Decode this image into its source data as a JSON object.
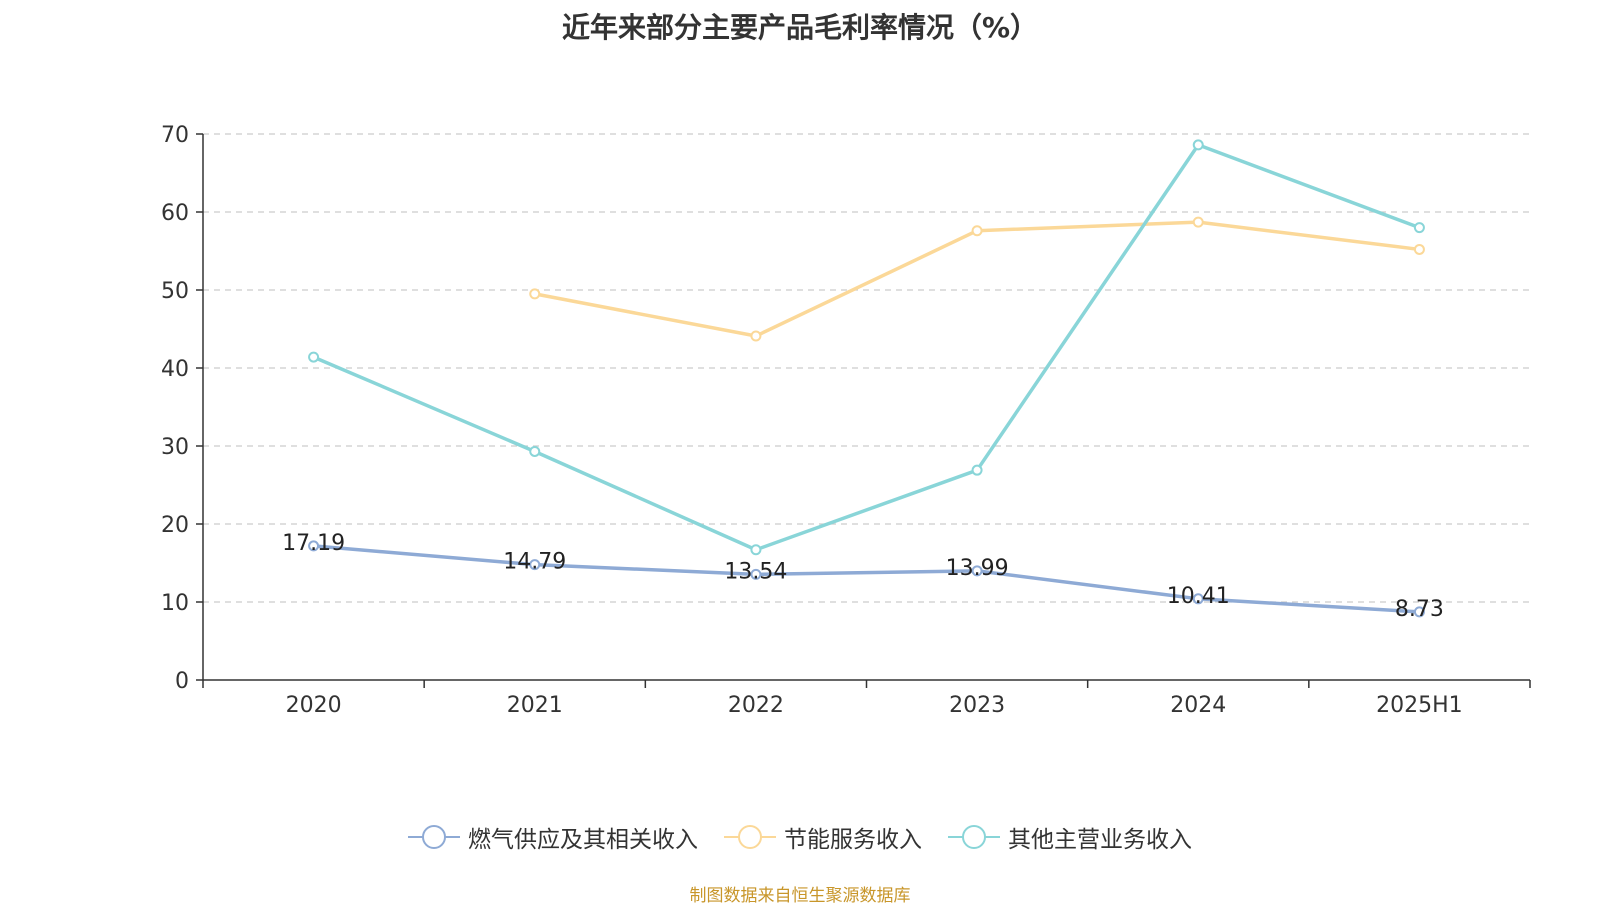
{
  "chart_data": {
    "type": "line",
    "title": "近年来部分主要产品毛利率情况（%）",
    "categories": [
      "2020",
      "2021",
      "2022",
      "2023",
      "2024",
      "2025H1"
    ],
    "ylim": [
      0,
      70
    ],
    "yticks": [
      0,
      10,
      20,
      30,
      40,
      50,
      60,
      70
    ],
    "grid": "horizontal dashed",
    "legend_position": "bottom",
    "series": [
      {
        "name": "燃气供应及其相关收入",
        "color": "#8eaad5",
        "values": [
          17.19,
          14.79,
          13.54,
          13.99,
          10.41,
          8.73
        ],
        "labels": [
          "17.19",
          "14.79",
          "13.54",
          "13.99",
          "10.41",
          "8.73"
        ]
      },
      {
        "name": "节能服务收入",
        "color": "#fbd898",
        "values": [
          null,
          49.5,
          44.1,
          57.6,
          58.7,
          55.2
        ]
      },
      {
        "name": "其他主营业务收入",
        "color": "#89d5d8",
        "values": [
          41.4,
          29.3,
          16.7,
          26.9,
          68.6,
          58.0
        ]
      }
    ]
  },
  "source": "制图数据来自恒生聚源数据库"
}
